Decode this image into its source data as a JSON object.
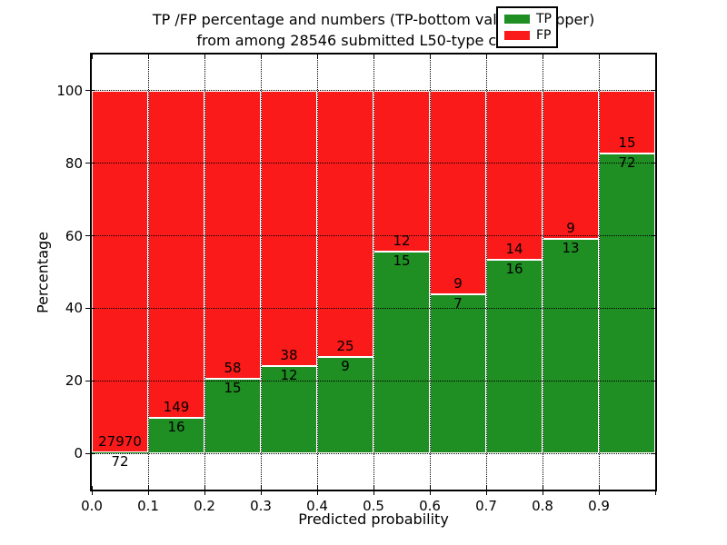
{
  "figure": {
    "title_line1": "TP /FP percentage and numbers (TP-bottom value, FP-upper)",
    "title_line2": "from among 28546 submitted L50-type contacts",
    "xlabel": "Predicted probability",
    "ylabel": "Percentage"
  },
  "legend": {
    "position": "upper right",
    "items": [
      {
        "label": "TP",
        "color": "#1f8e23"
      },
      {
        "label": "FP",
        "color": "#fa1a1a"
      }
    ]
  },
  "chart_data": {
    "type": "bar",
    "stacked": true,
    "normalized_to_percent": true,
    "title": "TP /FP percentage and numbers (TP-bottom value, FP-upper) from among 28546 submitted L50-type contacts",
    "xlabel": "Predicted probability",
    "ylabel": "Percentage",
    "total_contacts": 28546,
    "xlim": [
      0.0,
      1.0
    ],
    "ylim": [
      -10,
      110
    ],
    "bin_width": 0.1,
    "bin_starts": [
      0.0,
      0.1,
      0.2,
      0.3,
      0.4,
      0.5,
      0.6,
      0.7,
      0.8,
      0.9
    ],
    "x_tick_labels": [
      "0.0",
      "0.1",
      "0.2",
      "0.3",
      "0.4",
      "0.5",
      "0.6",
      "0.7",
      "0.8",
      "0.9"
    ],
    "y_ticks": [
      0,
      20,
      40,
      60,
      80,
      100
    ],
    "grid": "dotted",
    "legend_position": "upper right",
    "series": [
      {
        "name": "TP",
        "color": "#1f8e23",
        "counts": [
          72,
          16,
          15,
          12,
          9,
          15,
          7,
          16,
          13,
          72
        ]
      },
      {
        "name": "FP",
        "color": "#fa1a1a",
        "counts": [
          27970,
          149,
          58,
          38,
          25,
          12,
          9,
          14,
          9,
          15
        ]
      }
    ],
    "tp_percent_of_bin": [
      0.26,
      9.7,
      20.55,
      24.0,
      26.47,
      55.56,
      43.75,
      53.33,
      59.09,
      82.76
    ],
    "bar_edge_color": "#ffffff"
  }
}
